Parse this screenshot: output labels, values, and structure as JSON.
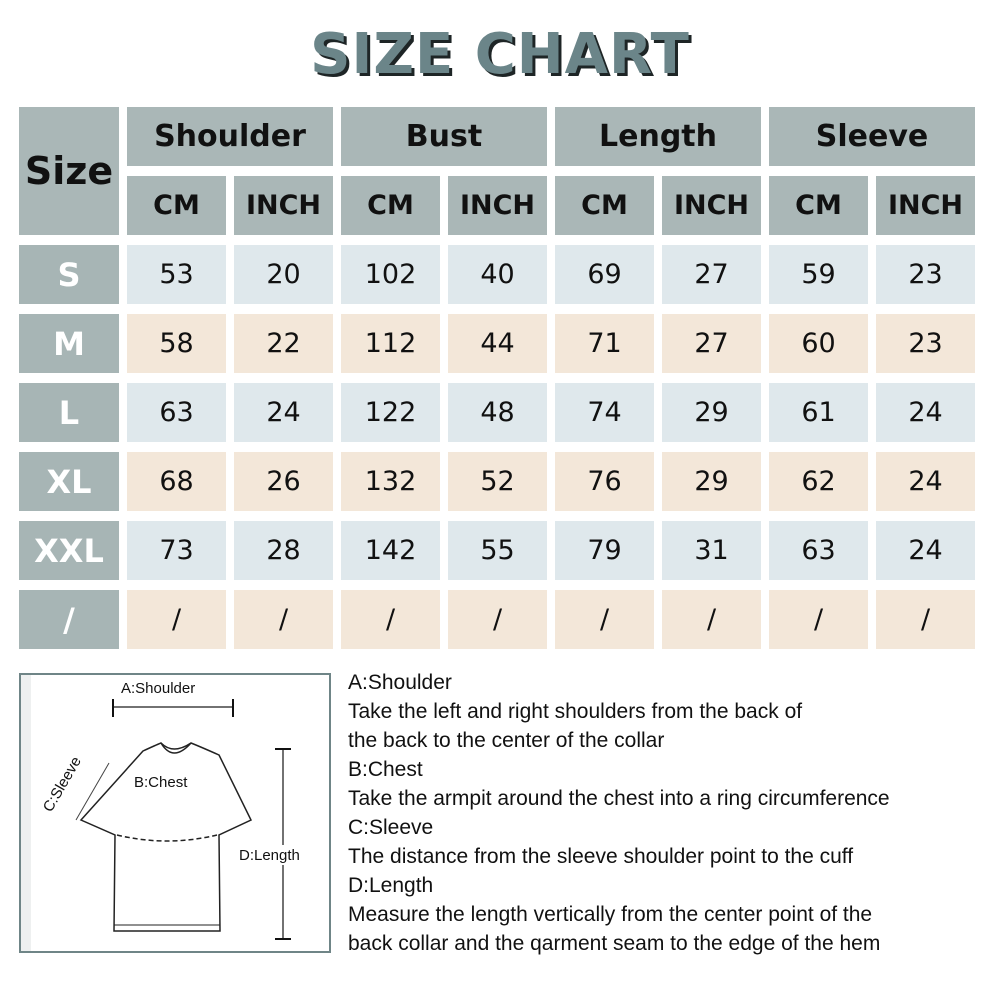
{
  "title": "SIZE CHART",
  "colors": {
    "header": "#aab7b7",
    "title": "#6b8589",
    "row_blue": "#dfe8ec",
    "row_beige": "#f3e7d9"
  },
  "table": {
    "size_header": "Size",
    "groups": [
      "Shoulder",
      "Bust",
      "Length",
      "Sleeve"
    ],
    "units": [
      "CM",
      "INCH",
      "CM",
      "INCH",
      "CM",
      "INCH",
      "CM",
      "INCH"
    ],
    "rows": [
      {
        "size": "S",
        "values": [
          "53",
          "20",
          "102",
          "40",
          "69",
          "27",
          "59",
          "23"
        ]
      },
      {
        "size": "M",
        "values": [
          "58",
          "22",
          "112",
          "44",
          "71",
          "27",
          "60",
          "23"
        ]
      },
      {
        "size": "L",
        "values": [
          "63",
          "24",
          "122",
          "48",
          "74",
          "29",
          "61",
          "24"
        ]
      },
      {
        "size": "XL",
        "values": [
          "68",
          "26",
          "132",
          "52",
          "76",
          "29",
          "62",
          "24"
        ]
      },
      {
        "size": "XXL",
        "values": [
          "73",
          "28",
          "142",
          "55",
          "79",
          "31",
          "63",
          "24"
        ]
      },
      {
        "size": "/",
        "values": [
          "/",
          "/",
          "/",
          "/",
          "/",
          "/",
          "/",
          "/"
        ]
      }
    ]
  },
  "diagram": {
    "shoulder": "A:Shoulder",
    "chest": "B:Chest",
    "sleeve": "C:Sleeve",
    "length": "D:Length"
  },
  "notes": [
    "A:Shoulder",
    "Take the left and right shoulders from the back of",
    "the back to the center of the collar",
    "B:Chest",
    "Take the armpit around the chest into a ring circumference",
    "C:Sleeve",
    "The distance from the sleeve shoulder point to the cuff",
    "D:Length",
    "Measure the length vertically from the center point of the",
    "back collar and the qarment seam to the edge of the hem"
  ]
}
